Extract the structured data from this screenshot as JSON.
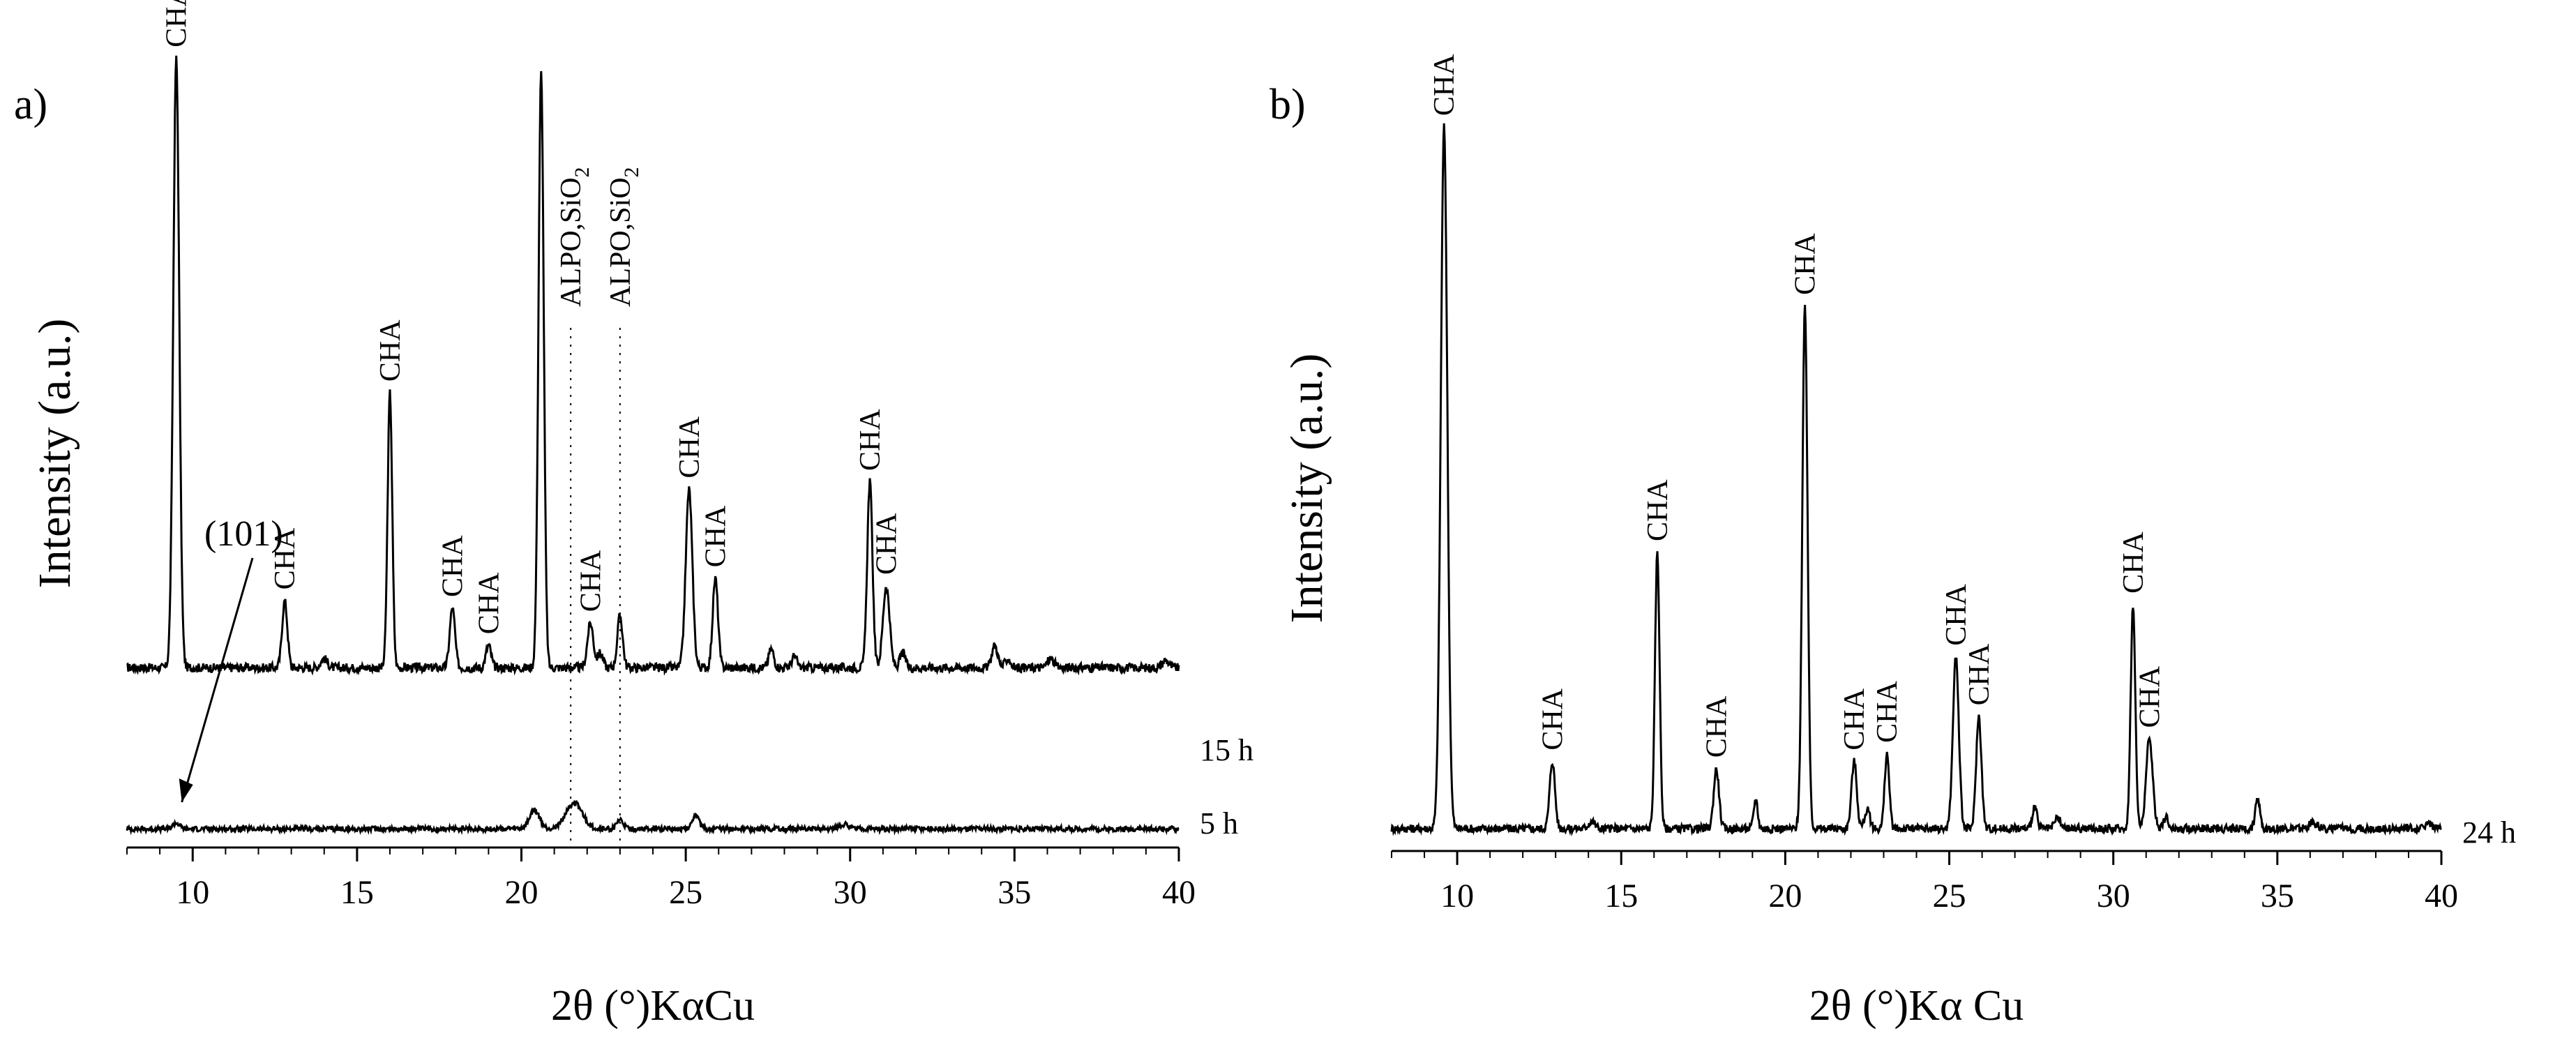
{
  "chart_data": [
    {
      "panel_label": "a)",
      "type": "line",
      "xlabel": "2θ (°)KαCu",
      "ylabel": "Intensity (a.u.)",
      "xlim": [
        8,
        40
      ],
      "xticks": [
        10,
        15,
        20,
        25,
        30,
        35,
        40
      ],
      "grid": false,
      "ylim": [
        0,
        100
      ],
      "series": [
        {
          "name": "15 h",
          "baseline": 12,
          "noise": 0.6,
          "peaks": [
            {
              "x": 9.5,
              "h": 82,
              "w": 0.09
            },
            {
              "x": 12.8,
              "h": 9,
              "w": 0.08
            },
            {
              "x": 14.0,
              "h": 1.2,
              "w": 0.1
            },
            {
              "x": 16.0,
              "h": 37,
              "w": 0.07
            },
            {
              "x": 17.9,
              "h": 8,
              "w": 0.08
            },
            {
              "x": 19.0,
              "h": 3,
              "w": 0.08
            },
            {
              "x": 20.6,
              "h": 80,
              "w": 0.08
            },
            {
              "x": 22.1,
              "h": 6,
              "w": 0.09
            },
            {
              "x": 22.4,
              "h": 2,
              "w": 0.08
            },
            {
              "x": 23.0,
              "h": 7,
              "w": 0.08
            },
            {
              "x": 25.1,
              "h": 24,
              "w": 0.1
            },
            {
              "x": 25.9,
              "h": 12,
              "w": 0.08
            },
            {
              "x": 27.6,
              "h": 2.5,
              "w": 0.08
            },
            {
              "x": 28.3,
              "h": 1.5,
              "w": 0.08
            },
            {
              "x": 30.6,
              "h": 25,
              "w": 0.08
            },
            {
              "x": 31.1,
              "h": 11,
              "w": 0.1
            },
            {
              "x": 31.6,
              "h": 2,
              "w": 0.08
            },
            {
              "x": 34.4,
              "h": 3,
              "w": 0.09
            },
            {
              "x": 34.8,
              "h": 1.2,
              "w": 0.08
            },
            {
              "x": 36.1,
              "h": 1.2,
              "w": 0.1
            },
            {
              "x": 39.6,
              "h": 1,
              "w": 0.1
            }
          ]
        },
        {
          "name": "5 h",
          "baseline": 2.5,
          "noise": 0.35,
          "peaks": [
            {
              "x": 9.5,
              "h": 0.8,
              "w": 0.1
            },
            {
              "x": 20.4,
              "h": 2.5,
              "w": 0.15
            },
            {
              "x": 21.6,
              "h": 3.5,
              "w": 0.25
            },
            {
              "x": 23.0,
              "h": 1.2,
              "w": 0.1
            },
            {
              "x": 25.3,
              "h": 2,
              "w": 0.1
            },
            {
              "x": 29.8,
              "h": 0.6,
              "w": 0.15
            }
          ]
        }
      ],
      "annotations": [
        {
          "text": "CHA",
          "x": 9.5
        },
        {
          "text": "CHA",
          "x": 12.8
        },
        {
          "text": "CHA",
          "x": 16.0
        },
        {
          "text": "CHA",
          "x": 17.9
        },
        {
          "text": "CHA",
          "x": 19.0
        },
        {
          "text": "CHA",
          "x": 22.1
        },
        {
          "text": "CHA",
          "x": 25.1
        },
        {
          "text": "CHA",
          "x": 25.9
        },
        {
          "text": "CHA",
          "x": 30.6
        },
        {
          "text": "CHA",
          "x": 31.1
        }
      ],
      "alpo_labels": [
        {
          "text": "ALPO,SiO",
          "sub": "2",
          "x": 21.5
        },
        {
          "text": "ALPO,SiO",
          "sub": "2",
          "x": 23.0
        }
      ],
      "hkl_label": {
        "text": "(101)",
        "x": 9.5
      }
    },
    {
      "panel_label": "b)",
      "type": "line",
      "xlabel": "2θ (°)Kα Cu",
      "ylabel": "Intensity (a.u.)",
      "xlim": [
        8,
        40
      ],
      "xticks": [
        10,
        15,
        20,
        25,
        30,
        35,
        40
      ],
      "grid": false,
      "ylim": [
        0,
        100
      ],
      "series": [
        {
          "name": "24 h",
          "baseline": 3,
          "noise": 0.55,
          "peaks": [
            {
              "x": 9.6,
              "h": 94,
              "w": 0.1
            },
            {
              "x": 12.9,
              "h": 9,
              "w": 0.08
            },
            {
              "x": 14.1,
              "h": 1,
              "w": 0.1
            },
            {
              "x": 16.1,
              "h": 37,
              "w": 0.07
            },
            {
              "x": 17.9,
              "h": 8,
              "w": 0.08
            },
            {
              "x": 19.1,
              "h": 4,
              "w": 0.06
            },
            {
              "x": 20.6,
              "h": 70,
              "w": 0.08
            },
            {
              "x": 22.1,
              "h": 9,
              "w": 0.08
            },
            {
              "x": 22.5,
              "h": 2.5,
              "w": 0.08
            },
            {
              "x": 23.1,
              "h": 10,
              "w": 0.07
            },
            {
              "x": 25.2,
              "h": 23,
              "w": 0.09
            },
            {
              "x": 25.9,
              "h": 15,
              "w": 0.08
            },
            {
              "x": 27.6,
              "h": 3,
              "w": 0.07
            },
            {
              "x": 28.3,
              "h": 1.5,
              "w": 0.08
            },
            {
              "x": 30.6,
              "h": 30,
              "w": 0.07
            },
            {
              "x": 31.1,
              "h": 12,
              "w": 0.1
            },
            {
              "x": 31.6,
              "h": 1.5,
              "w": 0.08
            },
            {
              "x": 34.4,
              "h": 4,
              "w": 0.07
            },
            {
              "x": 36.1,
              "h": 1,
              "w": 0.1
            },
            {
              "x": 39.6,
              "h": 0.8,
              "w": 0.1
            }
          ]
        }
      ],
      "annotations": [
        {
          "text": "CHA",
          "x": 9.6
        },
        {
          "text": "CHA",
          "x": 12.9
        },
        {
          "text": "CHA",
          "x": 16.1
        },
        {
          "text": "CHA",
          "x": 17.9
        },
        {
          "text": "CHA",
          "x": 20.6
        },
        {
          "text": "CHA",
          "x": 22.1
        },
        {
          "text": "CHA",
          "x": 23.1
        },
        {
          "text": "CHA",
          "x": 25.2
        },
        {
          "text": "CHA",
          "x": 25.9
        },
        {
          "text": "CHA",
          "x": 30.6
        },
        {
          "text": "CHA",
          "x": 31.1
        }
      ]
    }
  ]
}
